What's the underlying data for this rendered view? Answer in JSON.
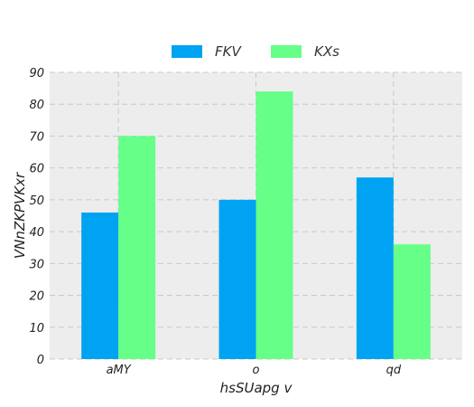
{
  "chart_data": {
    "type": "bar",
    "title": "",
    "xlabel": "hsSUapg v",
    "ylabel": "VNnZKPVKxr",
    "categories": [
      "aMY",
      "o",
      "qd"
    ],
    "series": [
      {
        "name": "FKV",
        "color": "#00a3f2",
        "values": [
          46,
          50,
          57
        ]
      },
      {
        "name": "KXs",
        "color": "#66ff88",
        "values": [
          70,
          84,
          36
        ]
      }
    ],
    "ylim": [
      0,
      90
    ],
    "yticks": [
      0,
      10,
      20,
      30,
      40,
      50,
      60,
      70,
      80,
      90
    ],
    "grid": true,
    "grid_style": "dashed",
    "plot_background": "#ededed",
    "legend_position": "top-center"
  }
}
